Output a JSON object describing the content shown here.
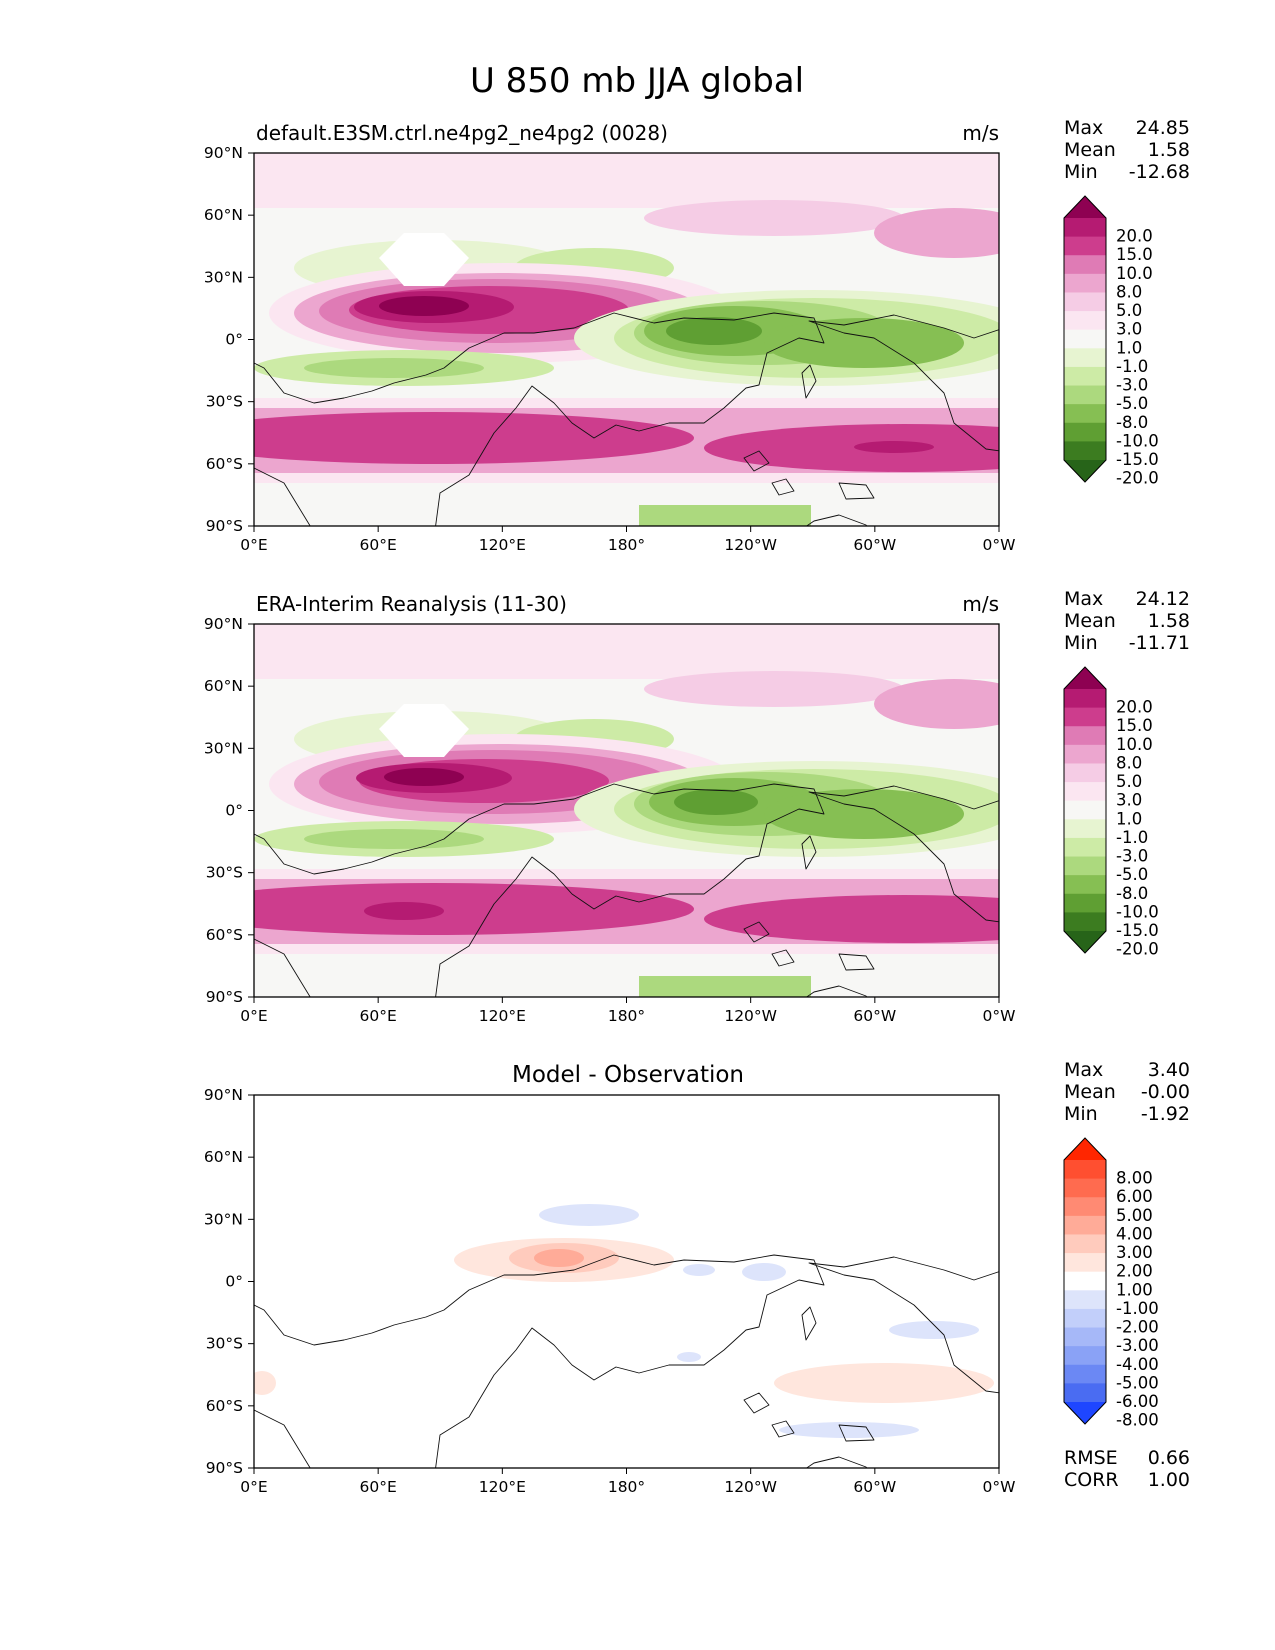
{
  "chart_data": {
    "type": "heatmap",
    "title": "U 850 mb JJA global",
    "xtick_labels": [
      "0°E",
      "60°E",
      "120°E",
      "180°",
      "120°W",
      "60°W",
      "0°W"
    ],
    "ytick_labels": [
      "90°N",
      "60°N",
      "30°N",
      "0°",
      "30°S",
      "60°S",
      "90°S"
    ],
    "xlim": [
      0,
      360
    ],
    "ylim": [
      -90,
      90
    ],
    "panels": [
      {
        "id": "test",
        "title": "default.E3SM.ctrl.ne4pg2_ne4pg2 (0028)",
        "units": "m/s",
        "title_centered": false,
        "stats": [
          {
            "label": "Max",
            "value": "24.85"
          },
          {
            "label": "Mean",
            "value": "1.58"
          },
          {
            "label": "Min",
            "value": "-12.68"
          }
        ],
        "colorbar": {
          "palette": "pink-green",
          "levels": [
            "20.0",
            "15.0",
            "10.0",
            "8.0",
            "5.0",
            "3.0",
            "1.0",
            "-1.0",
            "-3.0",
            "-5.0",
            "-8.0",
            "-10.0",
            "-15.0",
            "-20.0"
          ]
        }
      },
      {
        "id": "reference",
        "title": "ERA-Interim Reanalysis (11-30)",
        "units": "m/s",
        "title_centered": false,
        "stats": [
          {
            "label": "Max",
            "value": "24.12"
          },
          {
            "label": "Mean",
            "value": "1.58"
          },
          {
            "label": "Min",
            "value": "-11.71"
          }
        ],
        "colorbar": {
          "palette": "pink-green",
          "levels": [
            "20.0",
            "15.0",
            "10.0",
            "8.0",
            "5.0",
            "3.0",
            "1.0",
            "-1.0",
            "-3.0",
            "-5.0",
            "-8.0",
            "-10.0",
            "-15.0",
            "-20.0"
          ]
        }
      },
      {
        "id": "difference",
        "title": "Model - Observation",
        "units": "",
        "title_centered": true,
        "stats": [
          {
            "label": "Max",
            "value": "3.40"
          },
          {
            "label": "Mean",
            "value": "-0.00"
          },
          {
            "label": "Min",
            "value": "-1.92"
          }
        ],
        "colorbar": {
          "palette": "red-blue",
          "levels": [
            "8.00",
            "6.00",
            "5.00",
            "4.00",
            "3.00",
            "2.00",
            "1.00",
            "-1.00",
            "-2.00",
            "-3.00",
            "-4.00",
            "-5.00",
            "-6.00",
            "-8.00"
          ]
        },
        "metrics": [
          {
            "label": "RMSE",
            "value": "0.66"
          },
          {
            "label": "CORR",
            "value": "1.00"
          }
        ]
      }
    ]
  },
  "colors": {
    "pink_green": [
      "#8e0152",
      "#b51b72",
      "#cd3d8d",
      "#df7bb5",
      "#eca6cf",
      "#f5cce5",
      "#fbe6f1",
      "#f7f7f5",
      "#e7f4d1",
      "#cdeba6",
      "#acd97e",
      "#86bf53",
      "#5f9f33",
      "#3c7c20",
      "#276419"
    ],
    "red_blue": [
      "#ff2600",
      "#ff4f30",
      "#ff6b4f",
      "#ff8a73",
      "#ffab98",
      "#ffcbbd",
      "#ffe6dd",
      "#ffffff",
      "#dde4fb",
      "#c2cffa",
      "#a6b8f8",
      "#8aa2f6",
      "#6b88f4",
      "#4a6cf2",
      "#1e46ff"
    ]
  }
}
